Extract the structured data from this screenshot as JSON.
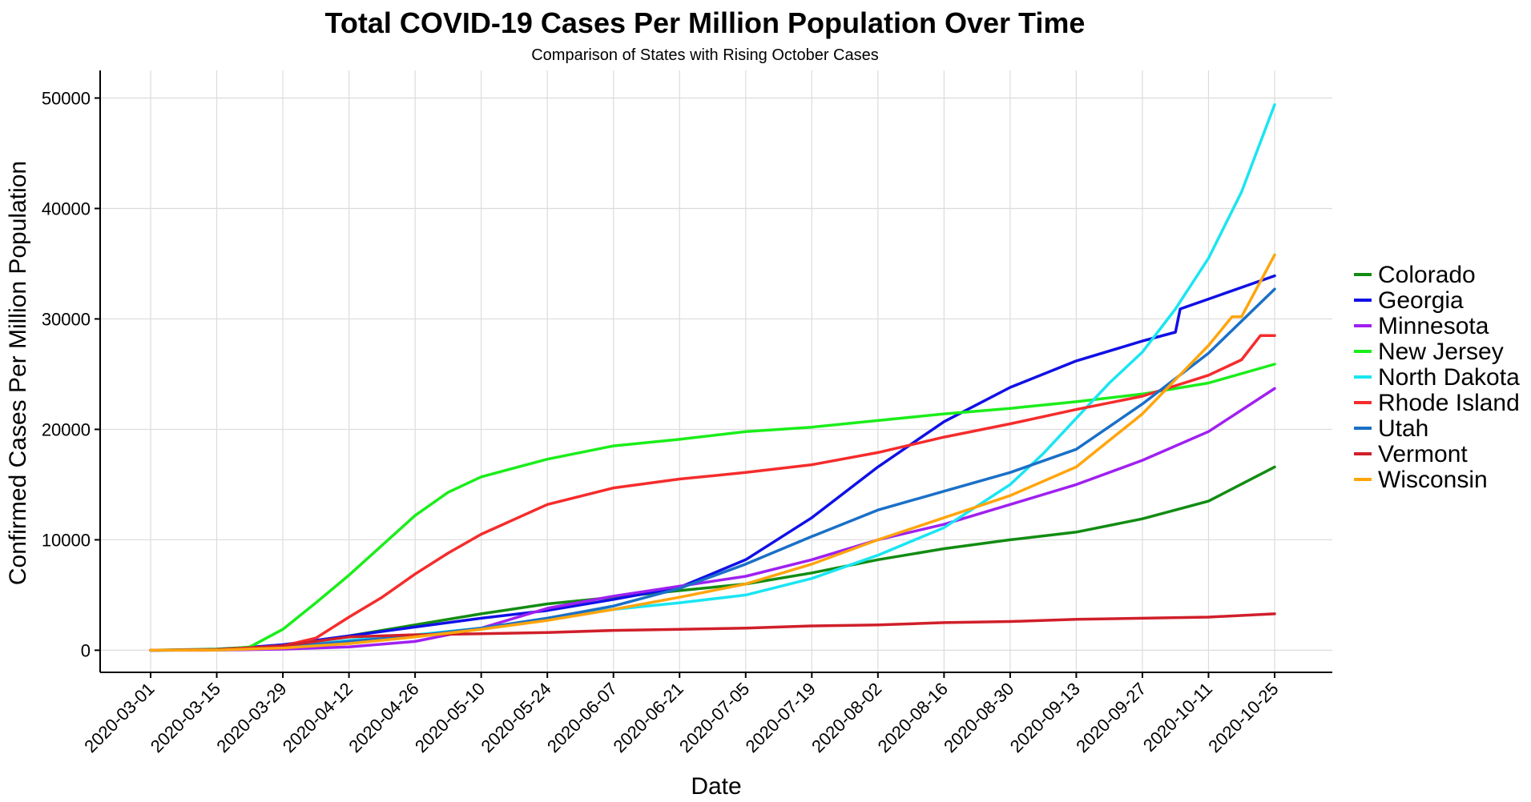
{
  "chart_data": {
    "type": "line",
    "title": "Total COVID-19 Cases Per Million Population Over Time",
    "subtitle": "Comparison of States with Rising October Cases",
    "xlabel": "Date",
    "ylabel": "Confirmed Cases Per Million Population",
    "x_range": [
      "2020-03-01",
      "2020-10-25"
    ],
    "ylim": [
      -2000,
      52500
    ],
    "x_ticks": [
      "2020-03-01",
      "2020-03-15",
      "2020-03-29",
      "2020-04-12",
      "2020-04-26",
      "2020-05-10",
      "2020-05-24",
      "2020-06-07",
      "2020-06-21",
      "2020-07-05",
      "2020-07-19",
      "2020-08-02",
      "2020-08-16",
      "2020-08-30",
      "2020-09-13",
      "2020-09-27",
      "2020-10-11",
      "2020-10-25"
    ],
    "y_ticks": [
      0,
      10000,
      20000,
      30000,
      40000,
      50000
    ],
    "y_tick_labels": [
      "0",
      "10000",
      "20000",
      "30000",
      "40000",
      "50000"
    ],
    "grid": true,
    "legend_position": "right",
    "series": [
      {
        "name": "Colorado",
        "color": "#128c12",
        "x": [
          "2020-03-01",
          "2020-03-15",
          "2020-03-29",
          "2020-04-12",
          "2020-04-26",
          "2020-05-10",
          "2020-05-24",
          "2020-06-07",
          "2020-06-21",
          "2020-07-05",
          "2020-07-19",
          "2020-08-02",
          "2020-08-16",
          "2020-08-30",
          "2020-09-13",
          "2020-09-27",
          "2020-10-11",
          "2020-10-25"
        ],
        "values": [
          0,
          100,
          450,
          1300,
          2300,
          3300,
          4200,
          4800,
          5400,
          6000,
          7000,
          8200,
          9200,
          10000,
          10700,
          11900,
          13500,
          16600
        ]
      },
      {
        "name": "Georgia",
        "color": "#1010e6",
        "x": [
          "2020-03-01",
          "2020-03-15",
          "2020-03-29",
          "2020-04-12",
          "2020-04-26",
          "2020-05-10",
          "2020-05-24",
          "2020-06-07",
          "2020-06-21",
          "2020-07-05",
          "2020-07-19",
          "2020-08-02",
          "2020-08-16",
          "2020-08-30",
          "2020-09-13",
          "2020-09-27",
          "2020-10-04",
          "2020-10-05",
          "2020-10-11",
          "2020-10-25"
        ],
        "values": [
          0,
          50,
          500,
          1300,
          2100,
          2900,
          3600,
          4600,
          5700,
          8200,
          12000,
          16600,
          20700,
          23800,
          26200,
          28000,
          28800,
          30900,
          31800,
          33900
        ]
      },
      {
        "name": "Minnesota",
        "color": "#a020f0",
        "x": [
          "2020-03-01",
          "2020-03-15",
          "2020-03-29",
          "2020-04-12",
          "2020-04-26",
          "2020-05-10",
          "2020-05-24",
          "2020-06-07",
          "2020-06-21",
          "2020-07-05",
          "2020-07-19",
          "2020-08-02",
          "2020-08-16",
          "2020-08-30",
          "2020-09-13",
          "2020-09-27",
          "2020-10-11",
          "2020-10-25"
        ],
        "values": [
          0,
          10,
          100,
          300,
          800,
          2000,
          3800,
          4900,
          5800,
          6700,
          8200,
          10000,
          11400,
          13200,
          15000,
          17200,
          19800,
          23700
        ]
      },
      {
        "name": "New Jersey",
        "color": "#1aee1a",
        "x": [
          "2020-03-01",
          "2020-03-15",
          "2020-03-22",
          "2020-03-29",
          "2020-04-05",
          "2020-04-12",
          "2020-04-19",
          "2020-04-26",
          "2020-05-03",
          "2020-05-10",
          "2020-05-24",
          "2020-06-07",
          "2020-06-21",
          "2020-07-05",
          "2020-07-19",
          "2020-08-02",
          "2020-08-16",
          "2020-08-30",
          "2020-09-13",
          "2020-09-27",
          "2020-10-11",
          "2020-10-25"
        ],
        "values": [
          0,
          20,
          300,
          1900,
          4300,
          6800,
          9500,
          12200,
          14300,
          15700,
          17300,
          18500,
          19100,
          19800,
          20200,
          20800,
          21400,
          21900,
          22500,
          23200,
          24200,
          25900
        ]
      },
      {
        "name": "North Dakota",
        "color": "#1ae5f2",
        "x": [
          "2020-03-01",
          "2020-03-15",
          "2020-03-29",
          "2020-04-12",
          "2020-04-26",
          "2020-05-10",
          "2020-05-24",
          "2020-06-07",
          "2020-06-21",
          "2020-07-05",
          "2020-07-19",
          "2020-08-02",
          "2020-08-16",
          "2020-08-30",
          "2020-09-06",
          "2020-09-13",
          "2020-09-20",
          "2020-09-27",
          "2020-10-04",
          "2020-10-11",
          "2020-10-18",
          "2020-10-25"
        ],
        "values": [
          0,
          20,
          250,
          900,
          1400,
          2000,
          2900,
          3700,
          4300,
          5000,
          6500,
          8600,
          11100,
          15000,
          17800,
          21000,
          24200,
          27000,
          30900,
          35500,
          41500,
          49400
        ]
      },
      {
        "name": "Rhode Island",
        "color": "#f52c2c",
        "x": [
          "2020-03-01",
          "2020-03-15",
          "2020-03-29",
          "2020-04-05",
          "2020-04-12",
          "2020-04-19",
          "2020-04-26",
          "2020-05-03",
          "2020-05-10",
          "2020-05-24",
          "2020-06-07",
          "2020-06-21",
          "2020-07-05",
          "2020-07-19",
          "2020-08-02",
          "2020-08-16",
          "2020-08-30",
          "2020-09-13",
          "2020-09-27",
          "2020-10-11",
          "2020-10-18",
          "2020-10-22",
          "2020-10-25"
        ],
        "values": [
          0,
          50,
          400,
          1100,
          3000,
          4800,
          6900,
          8800,
          10500,
          13200,
          14700,
          15500,
          16100,
          16800,
          17900,
          19300,
          20500,
          21800,
          23000,
          24900,
          26300,
          28500,
          28500
        ]
      },
      {
        "name": "Utah",
        "color": "#1a70c7",
        "x": [
          "2020-03-01",
          "2020-03-15",
          "2020-03-29",
          "2020-04-12",
          "2020-04-26",
          "2020-05-10",
          "2020-05-24",
          "2020-06-07",
          "2020-06-21",
          "2020-07-05",
          "2020-07-19",
          "2020-08-02",
          "2020-08-16",
          "2020-08-30",
          "2020-09-13",
          "2020-09-27",
          "2020-10-11",
          "2020-10-25"
        ],
        "values": [
          0,
          30,
          300,
          800,
          1300,
          2000,
          2900,
          4000,
          5600,
          7800,
          10300,
          12700,
          14400,
          16100,
          18200,
          22300,
          26900,
          32700
        ]
      },
      {
        "name": "Vermont",
        "color": "#d01f2a",
        "x": [
          "2020-03-01",
          "2020-03-15",
          "2020-03-29",
          "2020-04-12",
          "2020-04-26",
          "2020-05-10",
          "2020-05-24",
          "2020-06-07",
          "2020-06-21",
          "2020-07-05",
          "2020-07-19",
          "2020-08-02",
          "2020-08-16",
          "2020-08-30",
          "2020-09-13",
          "2020-09-27",
          "2020-10-11",
          "2020-10-25"
        ],
        "values": [
          0,
          40,
          400,
          1200,
          1400,
          1500,
          1600,
          1800,
          1900,
          2000,
          2200,
          2300,
          2500,
          2600,
          2800,
          2900,
          3000,
          3300
        ]
      },
      {
        "name": "Wisconsin",
        "color": "#ffa50d",
        "x": [
          "2020-03-01",
          "2020-03-15",
          "2020-03-29",
          "2020-04-12",
          "2020-04-26",
          "2020-05-10",
          "2020-05-24",
          "2020-06-07",
          "2020-06-21",
          "2020-07-05",
          "2020-07-19",
          "2020-08-02",
          "2020-08-16",
          "2020-08-30",
          "2020-09-13",
          "2020-09-27",
          "2020-10-04",
          "2020-10-11",
          "2020-10-16",
          "2020-10-18",
          "2020-10-25"
        ],
        "values": [
          0,
          20,
          200,
          600,
          1200,
          1900,
          2700,
          3700,
          4800,
          6000,
          7800,
          10000,
          12000,
          14000,
          16600,
          21400,
          24500,
          27600,
          30200,
          30200,
          35800
        ]
      }
    ]
  }
}
